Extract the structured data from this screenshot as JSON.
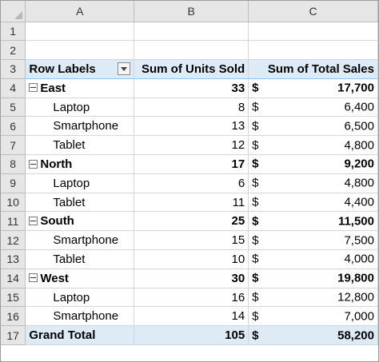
{
  "columns": [
    "A",
    "B",
    "C"
  ],
  "rows_numbers": [
    "1",
    "2",
    "3",
    "4",
    "5",
    "6",
    "7",
    "8",
    "9",
    "10",
    "11",
    "12",
    "13",
    "14",
    "15",
    "16",
    "17"
  ],
  "header": {
    "row_labels": "Row Labels",
    "units": "Sum of Units Sold",
    "sales": "Sum of Total Sales"
  },
  "pivot_rows": [
    {
      "level": "group",
      "label": "East",
      "units": "33",
      "currency": "$",
      "sales": "17,700"
    },
    {
      "level": "item",
      "label": "Laptop",
      "units": "8",
      "currency": "$",
      "sales": "6,400"
    },
    {
      "level": "item",
      "label": "Smartphone",
      "units": "13",
      "currency": "$",
      "sales": "6,500"
    },
    {
      "level": "item",
      "label": "Tablet",
      "units": "12",
      "currency": "$",
      "sales": "4,800"
    },
    {
      "level": "group",
      "label": "North",
      "units": "17",
      "currency": "$",
      "sales": "9,200"
    },
    {
      "level": "item",
      "label": "Laptop",
      "units": "6",
      "currency": "$",
      "sales": "4,800"
    },
    {
      "level": "item",
      "label": "Tablet",
      "units": "11",
      "currency": "$",
      "sales": "4,400"
    },
    {
      "level": "group",
      "label": "South",
      "units": "25",
      "currency": "$",
      "sales": "11,500"
    },
    {
      "level": "item",
      "label": "Smartphone",
      "units": "15",
      "currency": "$",
      "sales": "7,500"
    },
    {
      "level": "item",
      "label": "Tablet",
      "units": "10",
      "currency": "$",
      "sales": "4,000"
    },
    {
      "level": "group",
      "label": "West",
      "units": "30",
      "currency": "$",
      "sales": "19,800"
    },
    {
      "level": "item",
      "label": "Laptop",
      "units": "16",
      "currency": "$",
      "sales": "12,800"
    },
    {
      "level": "item",
      "label": "Smartphone",
      "units": "14",
      "currency": "$",
      "sales": "7,000"
    }
  ],
  "grand_total": {
    "label": "Grand Total",
    "units": "105",
    "currency": "$",
    "sales": "58,200"
  },
  "colors": {
    "pivot_header_fill": "#ddebf7",
    "pivot_border": "#9bc2e6",
    "heading_fill": "#e6e6e6"
  }
}
